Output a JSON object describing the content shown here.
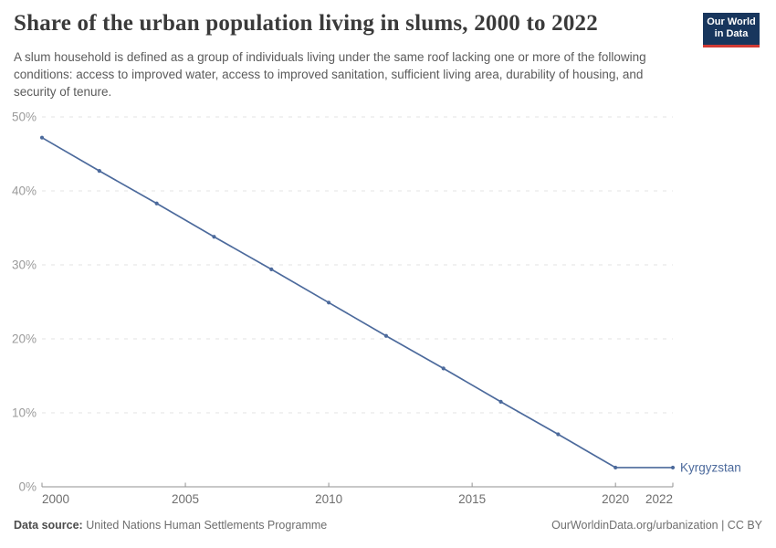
{
  "header": {
    "title": "Share of the urban population living in slums, 2000 to 2022",
    "subtitle": "A slum household is defined as a group of individuals living under the same roof lacking one or more of the following conditions: access to improved water, access to improved sanitation, sufficient living area, durability of housing, and security of tenure.",
    "logo": {
      "line1": "Our World",
      "line2": "in Data",
      "bg_color": "#18365d",
      "accent_color": "#d13a34"
    }
  },
  "chart_data": {
    "type": "line",
    "title": "Share of the urban population living in slums, 2000 to 2022",
    "unit": "%",
    "x": [
      2000,
      2002,
      2004,
      2006,
      2008,
      2010,
      2012,
      2014,
      2016,
      2018,
      2020,
      2022
    ],
    "series": [
      {
        "name": "Kyrgyzstan",
        "color": "#4C6A9C",
        "values": [
          47.2,
          42.7,
          38.3,
          33.8,
          29.4,
          24.9,
          20.4,
          16.0,
          11.5,
          7.1,
          2.6,
          2.6
        ]
      }
    ],
    "xlim": [
      2000,
      2022
    ],
    "ylim": [
      0,
      50
    ],
    "xticks": [
      {
        "value": 2000,
        "label": "2000"
      },
      {
        "value": 2005,
        "label": "2005"
      },
      {
        "value": 2010,
        "label": "2010"
      },
      {
        "value": 2015,
        "label": "2015"
      },
      {
        "value": 2020,
        "label": "2020"
      },
      {
        "value": 2022,
        "label": "2022"
      }
    ],
    "yticks": [
      {
        "value": 0,
        "label": "0%"
      },
      {
        "value": 10,
        "label": "10%"
      },
      {
        "value": 20,
        "label": "20%"
      },
      {
        "value": 30,
        "label": "30%"
      },
      {
        "value": 40,
        "label": "40%"
      },
      {
        "value": 50,
        "label": "50%"
      }
    ],
    "grid": "horizontal-dashed",
    "legend_position": "end-of-line",
    "colors": {
      "gridline": "#e3e3e3",
      "axis_line": "#929292",
      "y_tick_label": "#9b9b9b",
      "x_tick_label": "#6e6e6e"
    }
  },
  "footer": {
    "source_label": "Data source:",
    "source_value": "United Nations Human Settlements Programme",
    "credit": "OurWorldinData.org/urbanization | CC BY"
  }
}
